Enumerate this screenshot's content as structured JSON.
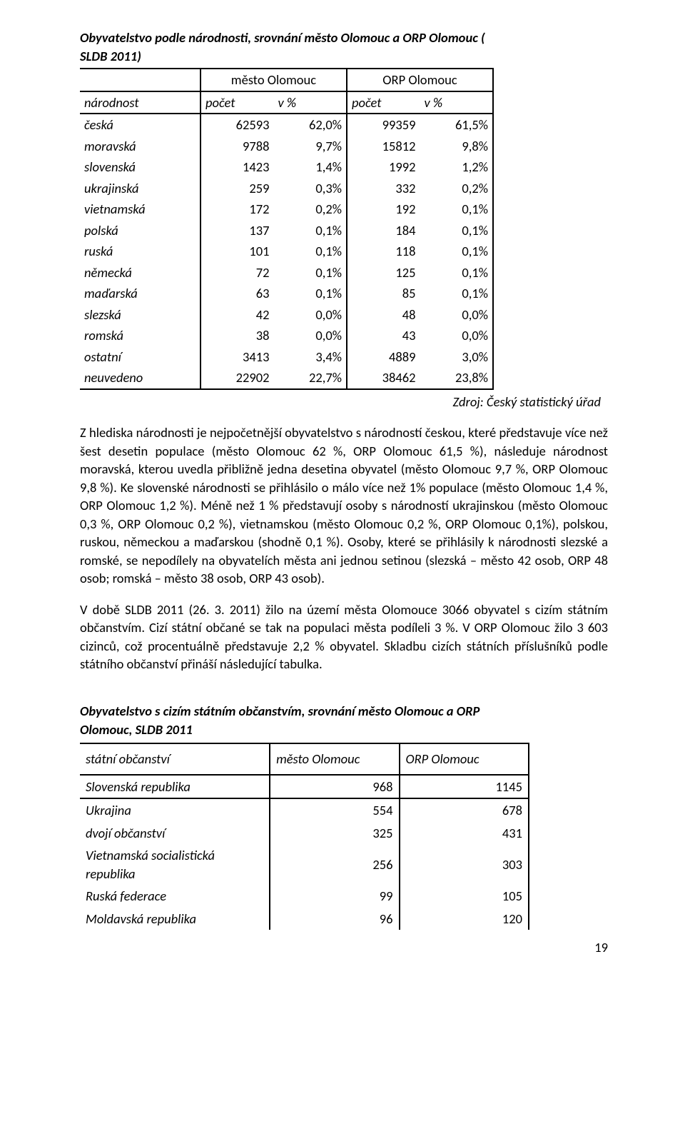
{
  "t1": {
    "title": "Obyvatelstvo podle národnosti, srovnání město Olomouc a ORP Olomouc ( SLDB 2011)",
    "grp1": "město Olomouc",
    "grp2": "ORP Olomouc",
    "h0": "národnost",
    "h1": "počet",
    "h2": "v %",
    "h3": "počet",
    "h4": "v %",
    "rows": [
      {
        "n": "česká",
        "a": "62593",
        "b": "62,0%",
        "c": "99359",
        "d": "61,5%"
      },
      {
        "n": "moravská",
        "a": "9788",
        "b": "9,7%",
        "c": "15812",
        "d": "9,8%"
      },
      {
        "n": "slovenská",
        "a": "1423",
        "b": "1,4%",
        "c": "1992",
        "d": "1,2%"
      },
      {
        "n": "ukrajinská",
        "a": "259",
        "b": "0,3%",
        "c": "332",
        "d": "0,2%"
      },
      {
        "n": "vietnamská",
        "a": "172",
        "b": "0,2%",
        "c": "192",
        "d": "0,1%"
      },
      {
        "n": "polská",
        "a": "137",
        "b": "0,1%",
        "c": "184",
        "d": "0,1%"
      },
      {
        "n": "ruská",
        "a": "101",
        "b": "0,1%",
        "c": "118",
        "d": "0,1%"
      },
      {
        "n": "německá",
        "a": "72",
        "b": "0,1%",
        "c": "125",
        "d": "0,1%"
      },
      {
        "n": "maďarská",
        "a": "63",
        "b": "0,1%",
        "c": "85",
        "d": "0,1%"
      },
      {
        "n": "slezská",
        "a": "42",
        "b": "0,0%",
        "c": "48",
        "d": "0,0%"
      },
      {
        "n": "romská",
        "a": "38",
        "b": "0,0%",
        "c": "43",
        "d": "0,0%"
      },
      {
        "n": "ostatní",
        "a": "3413",
        "b": "3,4%",
        "c": "4889",
        "d": "3,0%"
      },
      {
        "n": "neuvedeno",
        "a": "22902",
        "b": "22,7%",
        "c": "38462",
        "d": "23,8%"
      }
    ],
    "source": "Zdroj: Český statistický úřad"
  },
  "p1": "Z hlediska národnosti je nejpočetnější obyvatelstvo s národností českou, které představuje více než šest desetin populace (město Olomouc 62 %, ORP Olomouc 61,5 %), následuje národnost moravská, kterou uvedla přibližně jedna desetina obyvatel (město Olomouc 9,7 %, ORP Olomouc 9,8 %). Ke slovenské národnosti se přihlásilo o málo více než 1% populace (město Olomouc 1,4 %, ORP Olomouc 1,2 %). Méně než 1 % představují osoby s národností ukrajinskou (město Olomouc 0,3 %, ORP Olomouc 0,2 %), vietnamskou (město Olomouc 0,2 %, ORP Olomouc 0,1%), polskou, ruskou, německou a maďarskou (shodně 0,1 %). Osoby, které se přihlásily k národnosti slezské a romské, se nepodílely na obyvatelích města ani jednou setinou (slezská – město 42 osob, ORP 48 osob; romská – město 38 osob, ORP 43 osob).",
  "p2": "V době SLDB 2011 (26. 3. 2011) žilo na území města Olomouce 3066 obyvatel s cizím státním občanstvím. Cizí státní občané se tak na populaci města podíleli 3 %. V ORP Olomouc žilo 3 603 cizinců, což procentuálně představuje 2,2 % obyvatel. Skladbu cizích státních příslušníků podle státního občanství přináší následující tabulka.",
  "t2": {
    "title": "Obyvatelstvo s cizím státním občanstvím, srovnání město Olomouc a ORP Olomouc, SLDB 2011",
    "h0": "státní občanství",
    "h1": "město Olomouc",
    "h2": "ORP Olomouc",
    "rows": [
      {
        "n": "Slovenská republika",
        "a": "968",
        "b": "1145"
      },
      {
        "n": "Ukrajina",
        "a": "554",
        "b": "678"
      },
      {
        "n": "dvojí občanství",
        "a": "325",
        "b": "431"
      },
      {
        "n": "Vietnamská socialistická republika",
        "a": "256",
        "b": "303"
      },
      {
        "n": "Ruská federace",
        "a": "99",
        "b": "105"
      },
      {
        "n": "Moldavská republika",
        "a": "96",
        "b": "120"
      }
    ]
  },
  "pagenum": "19"
}
